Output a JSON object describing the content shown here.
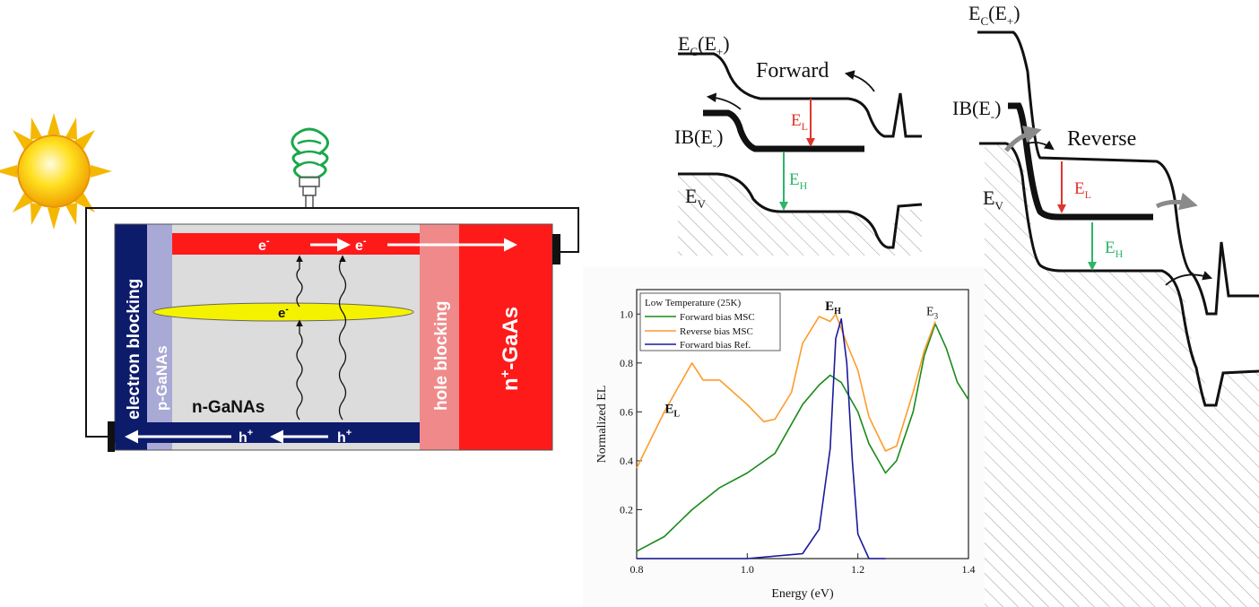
{
  "device": {
    "layers": {
      "electron_blocking": "electron blocking",
      "p_ganas": "p-GaNAs",
      "n_ganas": "n-GaNAs",
      "hole_blocking": "hole blocking",
      "n_gaas": "n",
      "n_gaas_sup": "+",
      "n_gaas_rest": "-GaAs"
    },
    "carriers": {
      "electron": "e",
      "electron_sup": "-",
      "hole": "h",
      "hole_sup": "+"
    }
  },
  "forward_band": {
    "title": "Forward",
    "ec": "E",
    "ec_sub": "C",
    "ec_paren": "(E",
    "ec_paren_sub": "+",
    "ib": "IB(E",
    "ib_sub": "-",
    "ev": "E",
    "ev_sub": "V",
    "el": "E",
    "el_sub": "L",
    "eh": "E",
    "eh_sub": "H"
  },
  "reverse_band": {
    "title": "Reverse",
    "ec": "E",
    "ec_sub": "C",
    "ec_paren": "(E",
    "ec_paren_sub": "+",
    "ib": "IB(E",
    "ib_sub": "-",
    "ev": "E",
    "ev_sub": "V",
    "el": "E",
    "el_sub": "L",
    "eh": "E",
    "eh_sub": "H"
  },
  "colors": {
    "navy": "#0d1b6b",
    "lavender": "#a9a9d6",
    "light_gray": "#dcdcdc",
    "pink": "#f08a8a",
    "red": "#ff0000",
    "yellow": "#f5f200",
    "green_arrow": "#2db56a",
    "red_arrow": "#e0352b",
    "forward_msc": "#1a8a1a",
    "reverse_msc": "#ff9a2a",
    "forward_ref": "#1a1a9a"
  },
  "chart_data": {
    "type": "line",
    "xlabel": "Energy (eV)",
    "ylabel": "Normalized EL",
    "xlim": [
      0.8,
      1.4
    ],
    "ylim": [
      0.0,
      1.1
    ],
    "xticks": [
      "0.8",
      "1.0",
      "1.2",
      "1.4"
    ],
    "yticks": [
      "0.2",
      "0.4",
      "0.6",
      "0.8",
      "1.0"
    ],
    "legend_title": "Low Temperature (25K)",
    "legend_position": "top-left",
    "annotations": [
      {
        "label": "E",
        "sub": "H",
        "x": 1.17,
        "y": 1.03
      },
      {
        "label": "E",
        "sub": "L",
        "x": 0.88,
        "y": 0.61
      },
      {
        "label": "E",
        "sub": "3",
        "x": 1.34,
        "y": 1.01
      }
    ],
    "series": [
      {
        "name": "Forward bias MSC",
        "color": "#1a8a1a",
        "x": [
          0.8,
          0.85,
          0.9,
          0.95,
          1.0,
          1.05,
          1.1,
          1.13,
          1.15,
          1.17,
          1.2,
          1.22,
          1.25,
          1.27,
          1.3,
          1.32,
          1.34,
          1.36,
          1.38,
          1.4
        ],
        "y": [
          0.03,
          0.09,
          0.2,
          0.29,
          0.35,
          0.43,
          0.63,
          0.71,
          0.75,
          0.72,
          0.6,
          0.47,
          0.35,
          0.4,
          0.6,
          0.83,
          0.96,
          0.86,
          0.72,
          0.65
        ]
      },
      {
        "name": "Reverse bias MSC",
        "color": "#ff9a2a",
        "x": [
          0.8,
          0.85,
          0.88,
          0.9,
          0.92,
          0.95,
          1.0,
          1.03,
          1.05,
          1.08,
          1.1,
          1.13,
          1.15,
          1.16,
          1.18,
          1.2,
          1.22,
          1.25,
          1.27,
          1.3,
          1.32,
          1.34
        ],
        "y": [
          0.37,
          0.6,
          0.72,
          0.8,
          0.73,
          0.73,
          0.63,
          0.56,
          0.57,
          0.68,
          0.88,
          0.99,
          0.97,
          1.0,
          0.88,
          0.77,
          0.58,
          0.44,
          0.46,
          0.68,
          0.85,
          0.97
        ]
      },
      {
        "name": "Forward bias Ref.",
        "color": "#1a1a9a",
        "x": [
          0.8,
          1.0,
          1.1,
          1.13,
          1.15,
          1.16,
          1.17,
          1.18,
          1.19,
          1.2,
          1.22,
          1.25
        ],
        "y": [
          0.0,
          0.0,
          0.02,
          0.12,
          0.45,
          0.9,
          0.98,
          0.8,
          0.4,
          0.1,
          0.0,
          0.0
        ]
      }
    ]
  }
}
